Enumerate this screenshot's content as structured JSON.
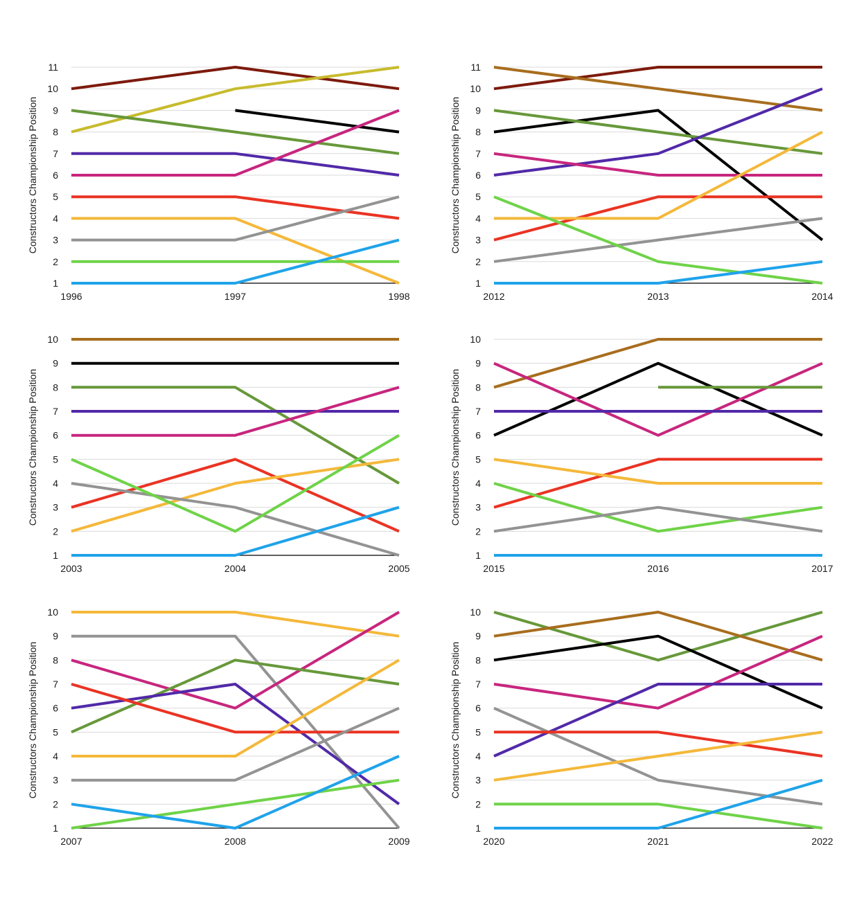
{
  "colors": {
    "maroon": "#7d1a0c",
    "olive": "#c7bb2d",
    "black": "#000000",
    "green": "#67983a",
    "purple": "#5129a8",
    "magenta": "#c7267e",
    "red": "#ea3323",
    "orange": "#f4b83a",
    "gray": "#939393",
    "lime": "#6fd348",
    "blue": "#1fa3ea",
    "brown": "#a86d1e",
    "gridline": "#d9d9d9"
  },
  "chart_data": [
    {
      "type": "line",
      "ylabel": "Constructors Championship Position",
      "x": [
        "1996",
        "1997",
        "1998"
      ],
      "ylim": [
        1,
        11
      ],
      "yticks": [
        1,
        2,
        3,
        4,
        5,
        6,
        7,
        8,
        9,
        10,
        11
      ],
      "grid": true,
      "series": [
        {
          "color": "maroon",
          "values": [
            10,
            11,
            10
          ]
        },
        {
          "color": "olive",
          "values": [
            8,
            10,
            11
          ]
        },
        {
          "color": "black",
          "values": [
            null,
            9,
            8
          ]
        },
        {
          "color": "green",
          "values": [
            9,
            8,
            7
          ]
        },
        {
          "color": "purple",
          "values": [
            7,
            7,
            6
          ]
        },
        {
          "color": "magenta",
          "values": [
            6,
            6,
            9
          ]
        },
        {
          "color": "red",
          "values": [
            5,
            5,
            4
          ]
        },
        {
          "color": "orange",
          "values": [
            4,
            4,
            1
          ]
        },
        {
          "color": "gray",
          "values": [
            3,
            3,
            5
          ]
        },
        {
          "color": "lime",
          "values": [
            2,
            2,
            2
          ]
        },
        {
          "color": "blue",
          "values": [
            1,
            1,
            3
          ]
        }
      ]
    },
    {
      "type": "line",
      "ylabel": "Constructors Championship Position",
      "x": [
        "2012",
        "2013",
        "2014"
      ],
      "ylim": [
        1,
        11
      ],
      "yticks": [
        1,
        2,
        3,
        4,
        5,
        6,
        7,
        8,
        9,
        10,
        11
      ],
      "grid": true,
      "series": [
        {
          "color": "maroon",
          "values": [
            10,
            11,
            11
          ]
        },
        {
          "color": "brown",
          "values": [
            11,
            10,
            9
          ]
        },
        {
          "color": "black",
          "values": [
            8,
            9,
            3
          ]
        },
        {
          "color": "green",
          "values": [
            9,
            8,
            7
          ]
        },
        {
          "color": "purple",
          "values": [
            6,
            7,
            10
          ]
        },
        {
          "color": "magenta",
          "values": [
            7,
            6,
            6
          ]
        },
        {
          "color": "red",
          "values": [
            3,
            5,
            5
          ]
        },
        {
          "color": "orange",
          "values": [
            4,
            4,
            8
          ]
        },
        {
          "color": "gray",
          "values": [
            2,
            3,
            4
          ]
        },
        {
          "color": "lime",
          "values": [
            5,
            2,
            1
          ]
        },
        {
          "color": "blue",
          "values": [
            1,
            1,
            2
          ]
        }
      ]
    },
    {
      "type": "line",
      "ylabel": "Constructors Championship Position",
      "x": [
        "2003",
        "2004",
        "2005"
      ],
      "ylim": [
        1,
        10
      ],
      "yticks": [
        1,
        2,
        3,
        4,
        5,
        6,
        7,
        8,
        9,
        10
      ],
      "grid": true,
      "series": [
        {
          "color": "brown",
          "values": [
            10,
            10,
            10
          ]
        },
        {
          "color": "black",
          "values": [
            9,
            9,
            9
          ]
        },
        {
          "color": "green",
          "values": [
            8,
            8,
            4
          ]
        },
        {
          "color": "purple",
          "values": [
            7,
            7,
            7
          ]
        },
        {
          "color": "magenta",
          "values": [
            6,
            6,
            8
          ]
        },
        {
          "color": "red",
          "values": [
            3,
            5,
            2
          ]
        },
        {
          "color": "orange",
          "values": [
            2,
            4,
            5
          ]
        },
        {
          "color": "gray",
          "values": [
            4,
            3,
            1
          ]
        },
        {
          "color": "lime",
          "values": [
            5,
            2,
            6
          ]
        },
        {
          "color": "blue",
          "values": [
            1,
            1,
            3
          ]
        }
      ]
    },
    {
      "type": "line",
      "ylabel": "Constructors Championship Position",
      "x": [
        "2015",
        "2016",
        "2017"
      ],
      "ylim": [
        1,
        10
      ],
      "yticks": [
        1,
        2,
        3,
        4,
        5,
        6,
        7,
        8,
        9,
        10
      ],
      "grid": true,
      "series": [
        {
          "color": "brown",
          "values": [
            8,
            10,
            10
          ]
        },
        {
          "color": "black",
          "values": [
            6,
            9,
            6
          ]
        },
        {
          "color": "magenta",
          "values": [
            9,
            6,
            9
          ]
        },
        {
          "color": "green",
          "values": [
            null,
            8,
            8
          ]
        },
        {
          "color": "purple",
          "values": [
            7,
            7,
            7
          ]
        },
        {
          "color": "red",
          "values": [
            3,
            5,
            5
          ]
        },
        {
          "color": "orange",
          "values": [
            5,
            4,
            4
          ]
        },
        {
          "color": "lime",
          "values": [
            4,
            2,
            3
          ]
        },
        {
          "color": "gray",
          "values": [
            2,
            3,
            2
          ]
        },
        {
          "color": "blue",
          "values": [
            1,
            1,
            1
          ]
        }
      ]
    },
    {
      "type": "line",
      "ylabel": "Constructors Championship Position",
      "x": [
        "2007",
        "2008",
        "2009"
      ],
      "ylim": [
        1,
        10
      ],
      "yticks": [
        1,
        2,
        3,
        4,
        5,
        6,
        7,
        8,
        9,
        10
      ],
      "grid": true,
      "series": [
        {
          "color": "orange",
          "values": [
            10,
            10,
            9
          ]
        },
        {
          "color": "gray",
          "values": [
            9,
            9,
            1
          ]
        },
        {
          "color": "magenta",
          "values": [
            8,
            6,
            10
          ]
        },
        {
          "color": "green",
          "values": [
            5,
            8,
            7
          ]
        },
        {
          "color": "purple",
          "values": [
            6,
            7,
            2
          ]
        },
        {
          "color": "red",
          "values": [
            7,
            5,
            5
          ]
        },
        {
          "color": "orange",
          "values": [
            4,
            4,
            8
          ]
        },
        {
          "color": "gray",
          "values": [
            3,
            3,
            6
          ]
        },
        {
          "color": "lime",
          "values": [
            1,
            2,
            3
          ]
        },
        {
          "color": "blue",
          "values": [
            2,
            1,
            4
          ]
        }
      ]
    },
    {
      "type": "line",
      "ylabel": "Constructors Championship Position",
      "x": [
        "2020",
        "2021",
        "2022"
      ],
      "ylim": [
        1,
        10
      ],
      "yticks": [
        1,
        2,
        3,
        4,
        5,
        6,
        7,
        8,
        9,
        10
      ],
      "grid": true,
      "series": [
        {
          "color": "green",
          "values": [
            10,
            8,
            10
          ]
        },
        {
          "color": "brown",
          "values": [
            9,
            10,
            8
          ]
        },
        {
          "color": "black",
          "values": [
            8,
            9,
            6
          ]
        },
        {
          "color": "magenta",
          "values": [
            7,
            6,
            9
          ]
        },
        {
          "color": "purple",
          "values": [
            4,
            7,
            7
          ]
        },
        {
          "color": "gray",
          "values": [
            6,
            3,
            2
          ]
        },
        {
          "color": "red",
          "values": [
            5,
            5,
            4
          ]
        },
        {
          "color": "orange",
          "values": [
            3,
            4,
            5
          ]
        },
        {
          "color": "lime",
          "values": [
            2,
            2,
            1
          ]
        },
        {
          "color": "blue",
          "values": [
            1,
            1,
            3
          ]
        }
      ]
    }
  ]
}
